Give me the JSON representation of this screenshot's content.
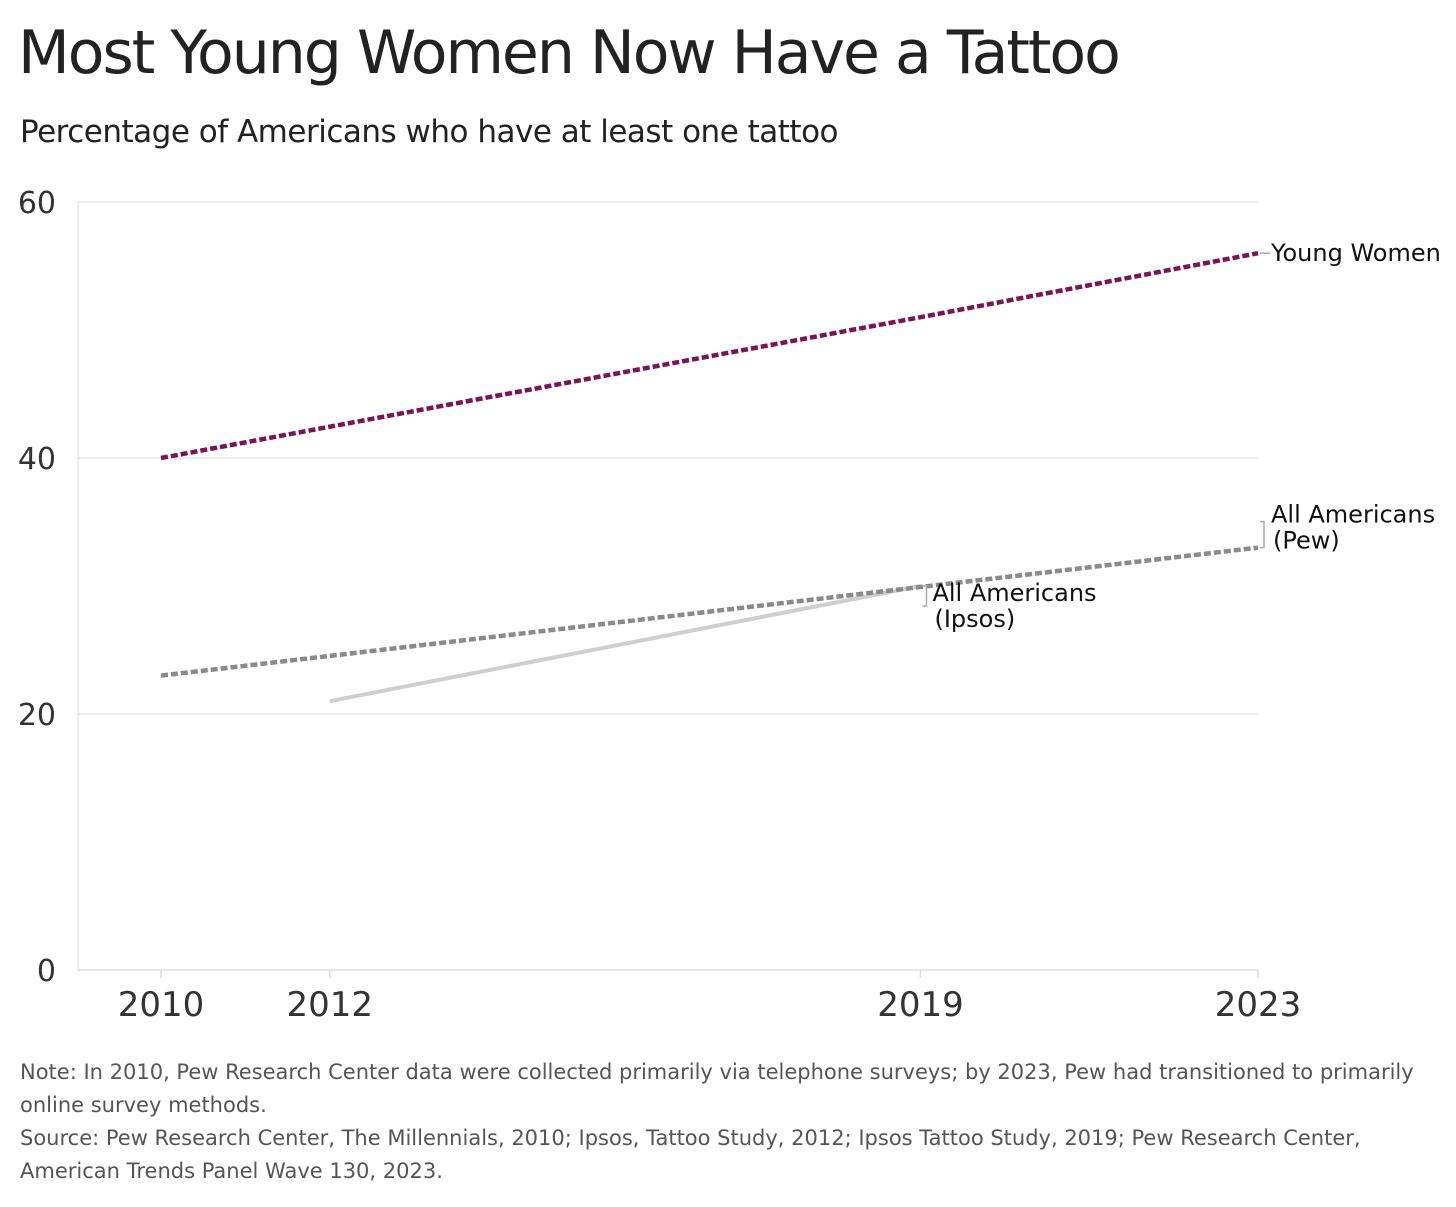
{
  "chart_data": {
    "type": "line",
    "title": "Most Young Women Now Have a Tattoo",
    "subtitle": "Percentage of Americans who have at least one tattoo",
    "xlabel": "",
    "ylabel": "",
    "x_domain": [
      2010,
      2023
    ],
    "ylim": [
      0,
      60
    ],
    "y_ticks": [
      0,
      20,
      40,
      60
    ],
    "x_ticks": [
      2010,
      2012,
      2019,
      2023
    ],
    "grid": true,
    "series": [
      {
        "name": "Young Women",
        "label_lines": [
          "Young Women"
        ],
        "color": "#7b1354",
        "style": "dashed",
        "x": [
          2010,
          2019,
          2023
        ],
        "values": [
          40,
          51,
          56
        ]
      },
      {
        "name": "All Americans (Pew)",
        "label_lines": [
          "All Americans",
          "(Pew)"
        ],
        "color": "#8a8a8a",
        "style": "dashed",
        "x": [
          2010,
          2023
        ],
        "values": [
          23,
          33
        ]
      },
      {
        "name": "All Americans (Ipsos)",
        "label_lines": [
          "All Americans",
          "(Ipsos)"
        ],
        "color": "#cfcfcf",
        "style": "solid",
        "x": [
          2012,
          2019
        ],
        "values": [
          21,
          30
        ]
      }
    ]
  },
  "notes": {
    "note": "Note: In 2010, Pew Research Center data were collected primarily via telephone surveys; by 2023, Pew had transitioned to primarily online survey methods.",
    "source": "Source: Pew Research Center, The Millennials, 2010; Ipsos, Tattoo Study, 2012; Ipsos Tattoo Study, 2019; Pew Research Center, American Trends Panel Wave 130, 2023."
  }
}
